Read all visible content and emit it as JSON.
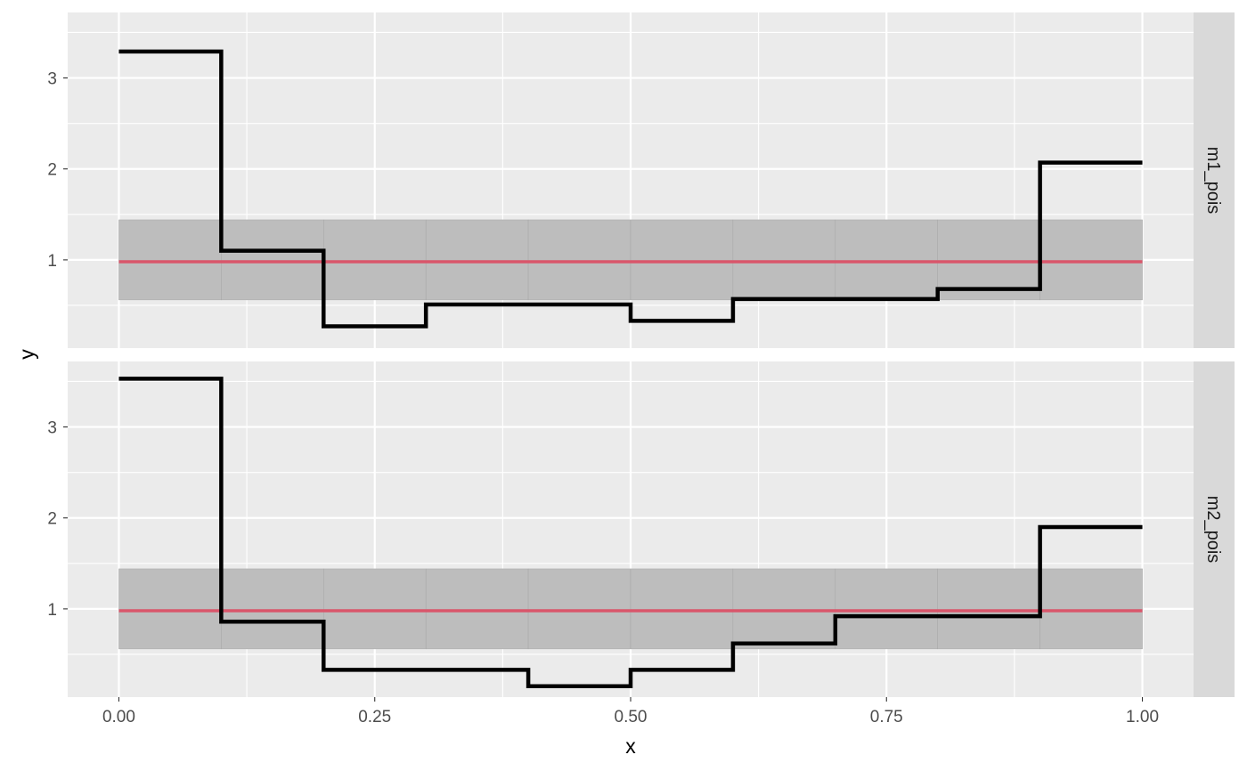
{
  "chart_data": {
    "type": "line",
    "step": "hv",
    "xlabel": "x",
    "ylabel": "y",
    "xlim": [
      -0.05,
      1.05
    ],
    "ylim": [
      0.03,
      3.72
    ],
    "x_ticks": [
      0.0,
      0.25,
      0.5,
      0.75,
      1.0
    ],
    "x_tick_labels": [
      "0.00",
      "0.25",
      "0.50",
      "0.75",
      "1.00"
    ],
    "y_ticks": [
      1,
      2,
      3
    ],
    "y_tick_labels": [
      "1",
      "2",
      "3"
    ],
    "grid": true,
    "reference_line": {
      "y": 0.98,
      "color": "#d9566b"
    },
    "band": {
      "ymin": 0.56,
      "ymax": 1.44,
      "breaks": [
        0.0,
        0.1,
        0.2,
        0.3,
        0.4,
        0.5,
        0.6,
        0.7,
        0.8,
        0.9,
        1.0
      ],
      "color": "#bdbdbd"
    },
    "panels": [
      {
        "strip": "m1_pois",
        "x": [
          0.0,
          0.1,
          0.2,
          0.3,
          0.4,
          0.5,
          0.6,
          0.7,
          0.8,
          0.9,
          1.0
        ],
        "y": [
          3.29,
          1.1,
          0.27,
          0.51,
          0.51,
          0.33,
          0.57,
          0.57,
          0.68,
          2.07,
          2.07
        ]
      },
      {
        "strip": "m2_pois",
        "x": [
          0.0,
          0.1,
          0.2,
          0.3,
          0.4,
          0.5,
          0.6,
          0.7,
          0.8,
          0.9,
          1.0
        ],
        "y": [
          3.53,
          0.86,
          0.33,
          0.33,
          0.15,
          0.33,
          0.62,
          0.92,
          0.92,
          1.9,
          1.9
        ]
      }
    ]
  }
}
